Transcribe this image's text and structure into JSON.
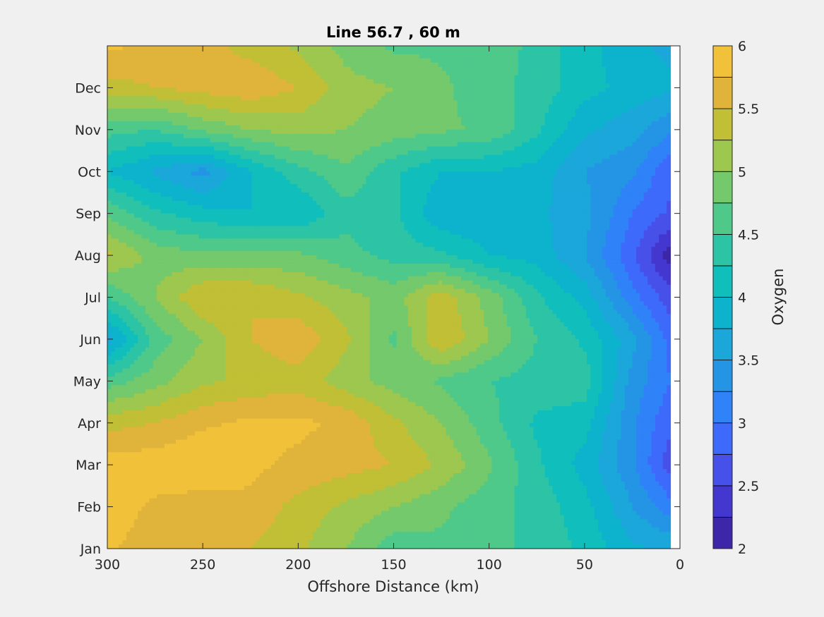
{
  "chart_data": {
    "type": "heatmap",
    "subtype": "filled-contour",
    "title": "Line 56.7 , 60 m",
    "xlabel": "Offshore Distance (km)",
    "ylabel": "",
    "x_reversed": true,
    "xlim": [
      300,
      0
    ],
    "xticks": [
      300,
      250,
      200,
      150,
      100,
      50,
      0
    ],
    "xtick_labels": [
      "300",
      "250",
      "200",
      "150",
      "100",
      "50",
      "0"
    ],
    "ylim": [
      0,
      12
    ],
    "y_tick_positions": [
      0,
      1,
      2,
      3,
      4,
      5,
      6,
      7,
      8,
      9,
      10,
      11
    ],
    "ytick_labels": [
      "Jan",
      "Feb",
      "Mar",
      "Apr",
      "May",
      "Jun",
      "Jul",
      "Aug",
      "Sep",
      "Oct",
      "Nov",
      "Dec"
    ],
    "data_x_range": [
      300,
      5
    ],
    "colorbar": {
      "label": "Oxygen",
      "range": [
        2,
        6
      ],
      "ticks": [
        2,
        2.5,
        3,
        3.5,
        4,
        4.5,
        5,
        5.5,
        6
      ],
      "tick_labels": [
        "2",
        "2.5",
        "3",
        "3.5",
        "4",
        "4.5",
        "5",
        "5.5",
        "6"
      ],
      "levels": [
        2,
        2.25,
        2.5,
        2.75,
        3,
        3.25,
        3.5,
        3.75,
        4,
        4.25,
        4.5,
        4.75,
        5,
        5.25,
        5.5,
        5.75,
        6
      ],
      "colormap": "parula",
      "colors": [
        "#3d26a8",
        "#4437cf",
        "#4750e8",
        "#3e6afc",
        "#2f82f7",
        "#2495e5",
        "#1ba7da",
        "#0db3cc",
        "#10bebc",
        "#2dc4a6",
        "#4fc98a",
        "#73c96b",
        "#9dc74e",
        "#c0bf35",
        "#e0b43a",
        "#f2c13a",
        "#fbd62b"
      ]
    },
    "x_grid": [
      300,
      275,
      250,
      225,
      200,
      175,
      150,
      125,
      100,
      75,
      50,
      25,
      5
    ],
    "y_grid": [
      0,
      1,
      2,
      3,
      4,
      5,
      6,
      7,
      8,
      9,
      10,
      11,
      12
    ],
    "z": [
      [
        5.8,
        5.6,
        5.5,
        5.5,
        5.3,
        5.0,
        4.6,
        4.7,
        4.6,
        4.4,
        4.2,
        3.8,
        3.7
      ],
      [
        5.9,
        5.7,
        5.6,
        5.7,
        5.4,
        5.2,
        5.0,
        4.8,
        4.6,
        4.4,
        4.1,
        3.5,
        3.1
      ],
      [
        5.9,
        5.9,
        6.0,
        5.8,
        5.7,
        5.6,
        5.5,
        5.2,
        4.8,
        4.3,
        3.9,
        3.3,
        2.6
      ],
      [
        5.4,
        5.5,
        5.7,
        5.8,
        5.8,
        5.7,
        5.3,
        5.0,
        4.6,
        4.2,
        4.1,
        3.3,
        2.8
      ],
      [
        4.6,
        4.9,
        5.2,
        5.3,
        5.4,
        5.1,
        4.9,
        4.7,
        4.5,
        4.4,
        4.4,
        3.4,
        3.0
      ],
      [
        3.6,
        4.6,
        5.0,
        5.5,
        5.7,
        5.3,
        4.7,
        5.5,
        5.0,
        4.5,
        4.2,
        3.6,
        2.9
      ],
      [
        4.5,
        5.0,
        5.5,
        5.5,
        5.3,
        5.1,
        4.9,
        5.4,
        4.9,
        4.3,
        3.9,
        3.1,
        2.6
      ],
      [
        5.3,
        4.9,
        4.8,
        4.8,
        4.8,
        4.6,
        4.4,
        4.3,
        4.0,
        3.9,
        3.5,
        2.8,
        2.1
      ],
      [
        4.7,
        4.3,
        4.1,
        4.0,
        4.0,
        4.4,
        4.3,
        3.8,
        3.8,
        3.8,
        3.6,
        3.0,
        2.7
      ],
      [
        4.0,
        3.7,
        3.4,
        4.0,
        4.4,
        4.7,
        4.3,
        4.0,
        4.0,
        3.9,
        3.5,
        3.3,
        2.8
      ],
      [
        4.6,
        4.5,
        4.8,
        5.0,
        5.1,
        5.0,
        4.9,
        4.8,
        4.7,
        4.3,
        3.8,
        3.6,
        3.3
      ],
      [
        5.4,
        5.5,
        5.6,
        5.7,
        5.5,
        5.1,
        5.0,
        4.8,
        4.6,
        4.4,
        4.1,
        3.9,
        3.8
      ],
      [
        5.8,
        5.7,
        5.6,
        5.4,
        5.2,
        4.9,
        4.7,
        4.7,
        4.7,
        4.4,
        4.1,
        3.8,
        3.7
      ]
    ]
  }
}
